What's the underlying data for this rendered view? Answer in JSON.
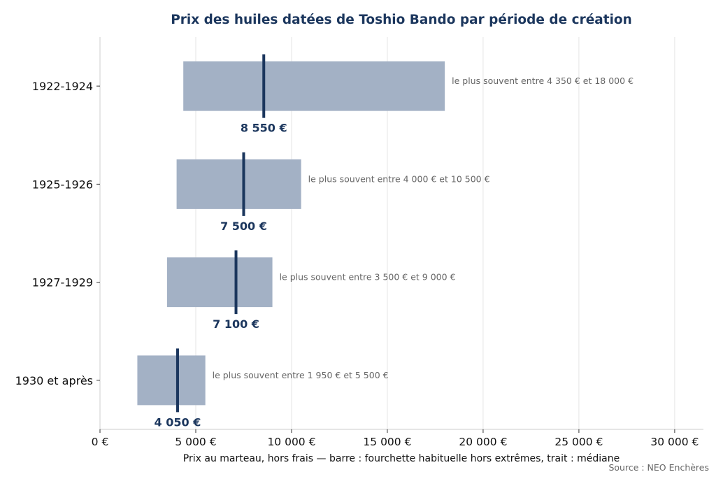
{
  "chart_data": {
    "type": "bar",
    "orientation": "horizontal-range",
    "title": "Prix des huiles datées de Toshio Bando par période de création",
    "xlabel": "Prix au marteau, hors frais — barre : fourchette habituelle hors extrêmes, trait : médiane",
    "ylabel": "",
    "source": "Source : NEO Enchères",
    "xlim": [
      0,
      31500
    ],
    "xticks": [
      0,
      5000,
      10000,
      15000,
      20000,
      25000,
      30000
    ],
    "xtick_labels": [
      "0 €",
      "5 000 €",
      "10 000 €",
      "15 000 €",
      "20 000 €",
      "25 000 €",
      "30 000 €"
    ],
    "grid": "vertical",
    "categories": [
      "1922-1924",
      "1925-1926",
      "1927-1929",
      "1930 et après"
    ],
    "series": [
      {
        "low": [
          4350,
          4000,
          3500,
          1950
        ],
        "high": [
          18000,
          10500,
          9000,
          5500
        ],
        "median": [
          8550,
          7500,
          7100,
          4050
        ]
      }
    ],
    "median_labels": [
      "8 550 €",
      "7 500 €",
      "7 100 €",
      "4 050 €"
    ],
    "range_labels": [
      "le plus souvent entre 4 350 € et 18 000 €",
      "le plus souvent entre 4 000 € et 10 500 €",
      "le plus souvent entre 3 500 € et 9 000 €",
      "le plus souvent entre 1 950 € et 5 500 €"
    ],
    "colors": {
      "bar": "#a3b1c5",
      "median": "#1b365d",
      "title": "#1b365d",
      "annotation": "#666666",
      "grid": "#e5e5e5",
      "axis": "#cccccc"
    }
  }
}
